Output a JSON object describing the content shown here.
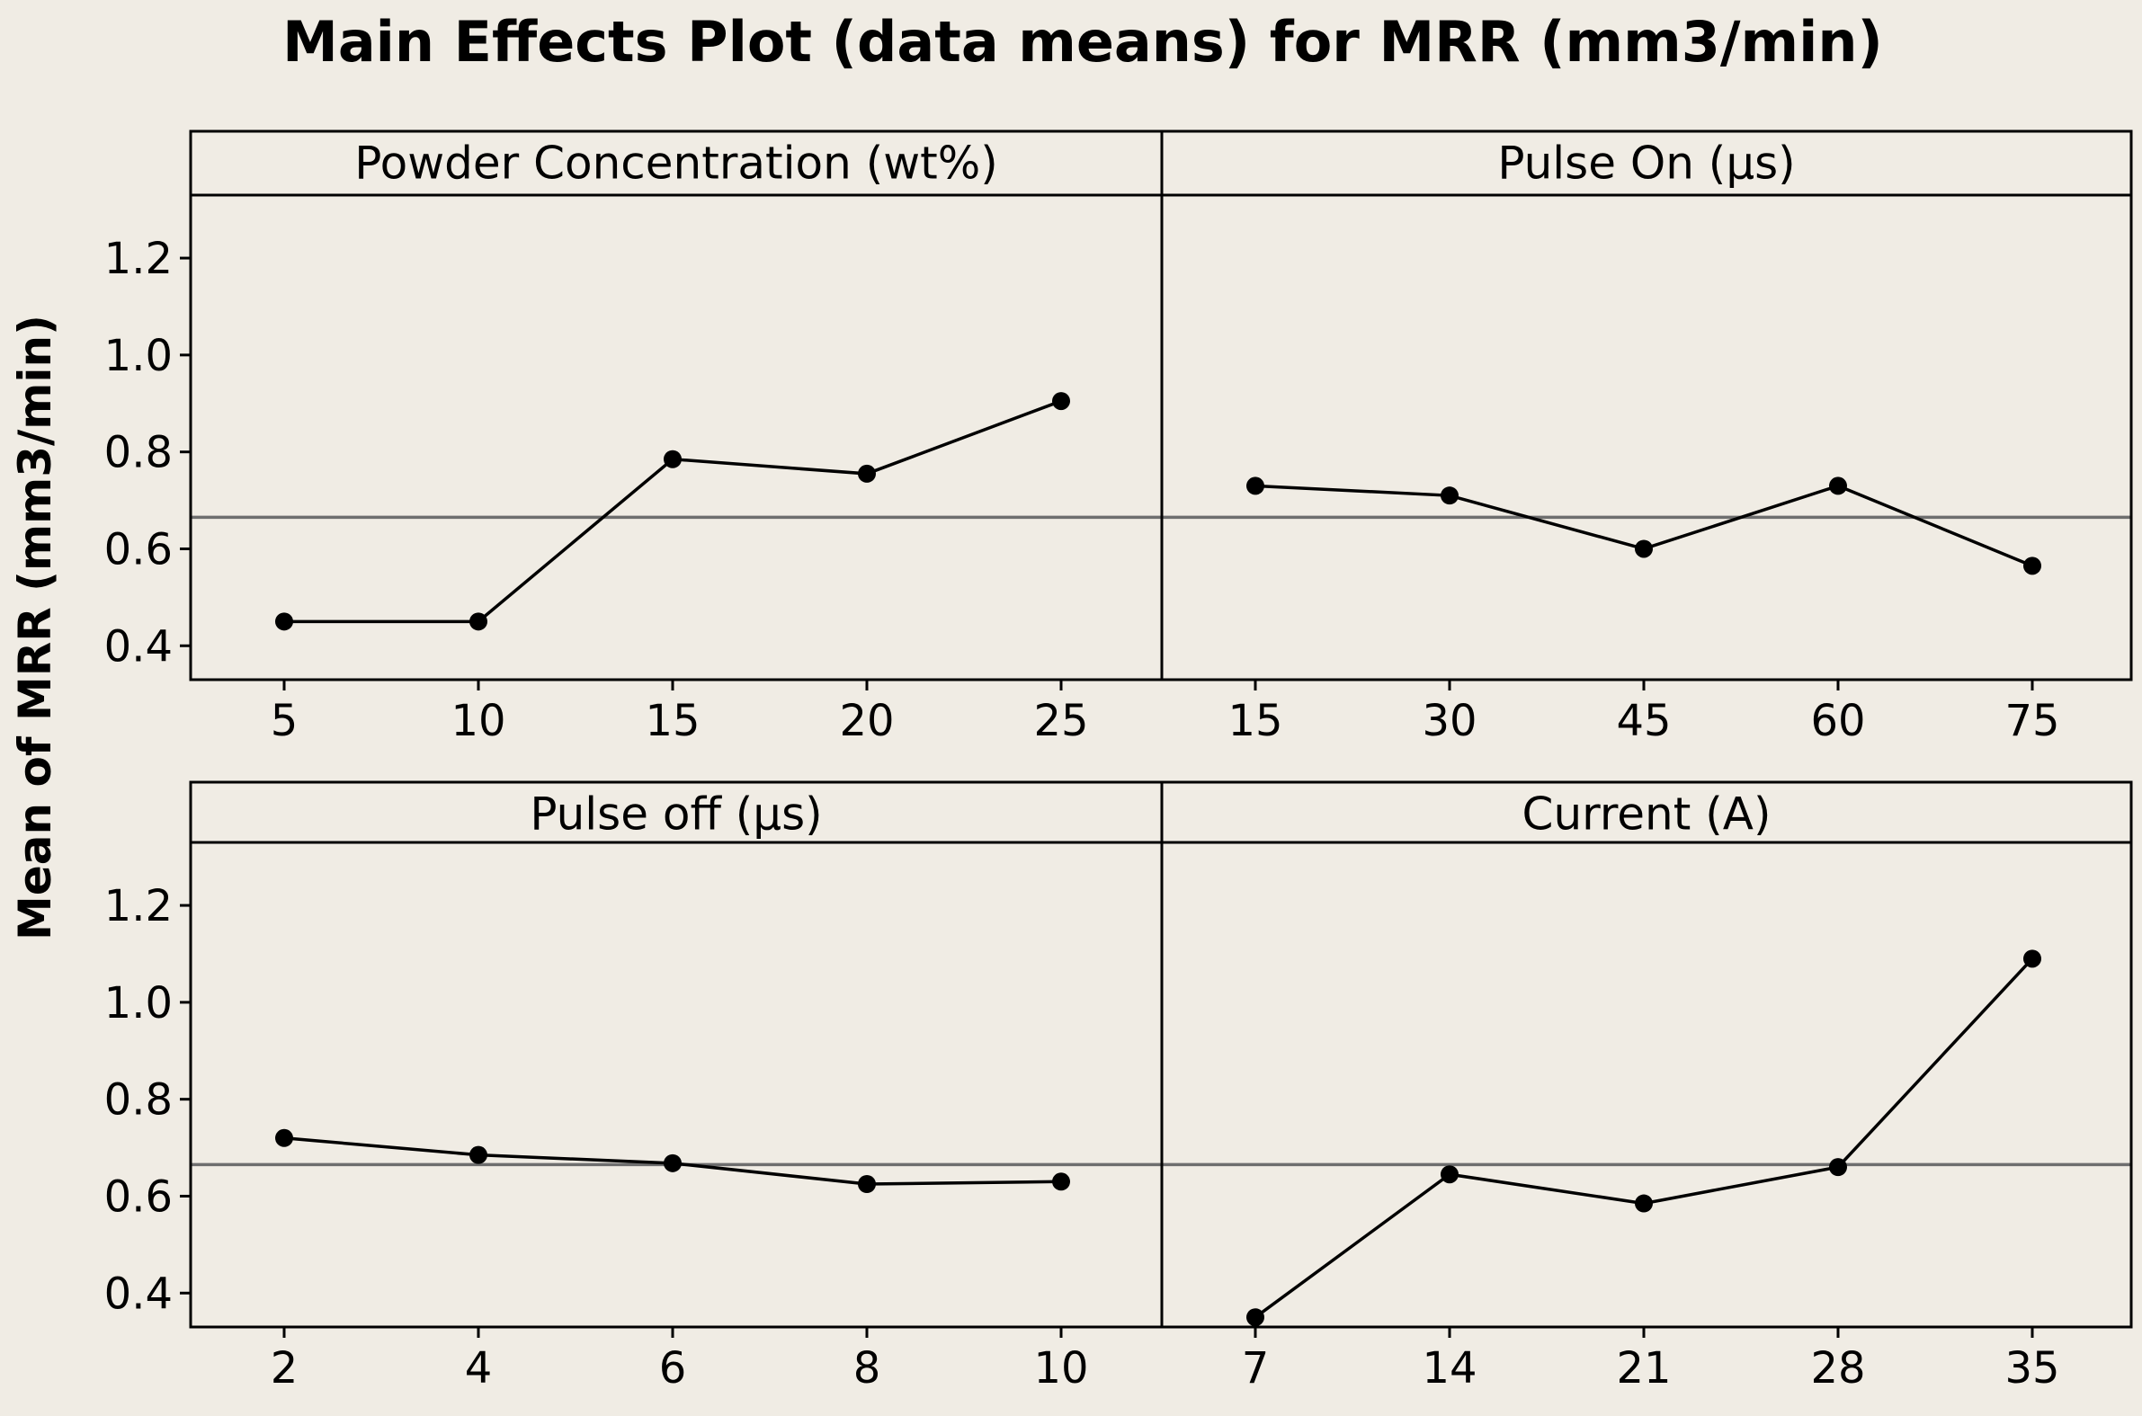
{
  "chart_data": {
    "type": "line",
    "title": "Main Effects Plot (data means) for MRR (mm3/min)",
    "ylabel": "Mean of MRR (mm3/min)",
    "ylim": [
      0.33,
      1.33
    ],
    "yticks": [
      "0.4",
      "0.6",
      "0.8",
      "1.0",
      "1.2"
    ],
    "overall_mean": 0.665,
    "grid": false,
    "panels": [
      {
        "name": "Powder Concentration (wt%)",
        "categories": [
          "5",
          "10",
          "15",
          "20",
          "25"
        ],
        "values": [
          0.45,
          0.45,
          0.785,
          0.755,
          0.905
        ]
      },
      {
        "name": "Pulse On (µs)",
        "categories": [
          "15",
          "30",
          "45",
          "60",
          "75"
        ],
        "values": [
          0.73,
          0.71,
          0.6,
          0.73,
          0.565
        ]
      },
      {
        "name": "Pulse off (µs)",
        "categories": [
          "2",
          "4",
          "6",
          "8",
          "10"
        ],
        "values": [
          0.72,
          0.685,
          0.668,
          0.625,
          0.63
        ]
      },
      {
        "name": "Current (A)",
        "categories": [
          "7",
          "14",
          "21",
          "28",
          "35"
        ],
        "values": [
          0.35,
          0.645,
          0.585,
          0.66,
          1.09
        ]
      }
    ]
  }
}
